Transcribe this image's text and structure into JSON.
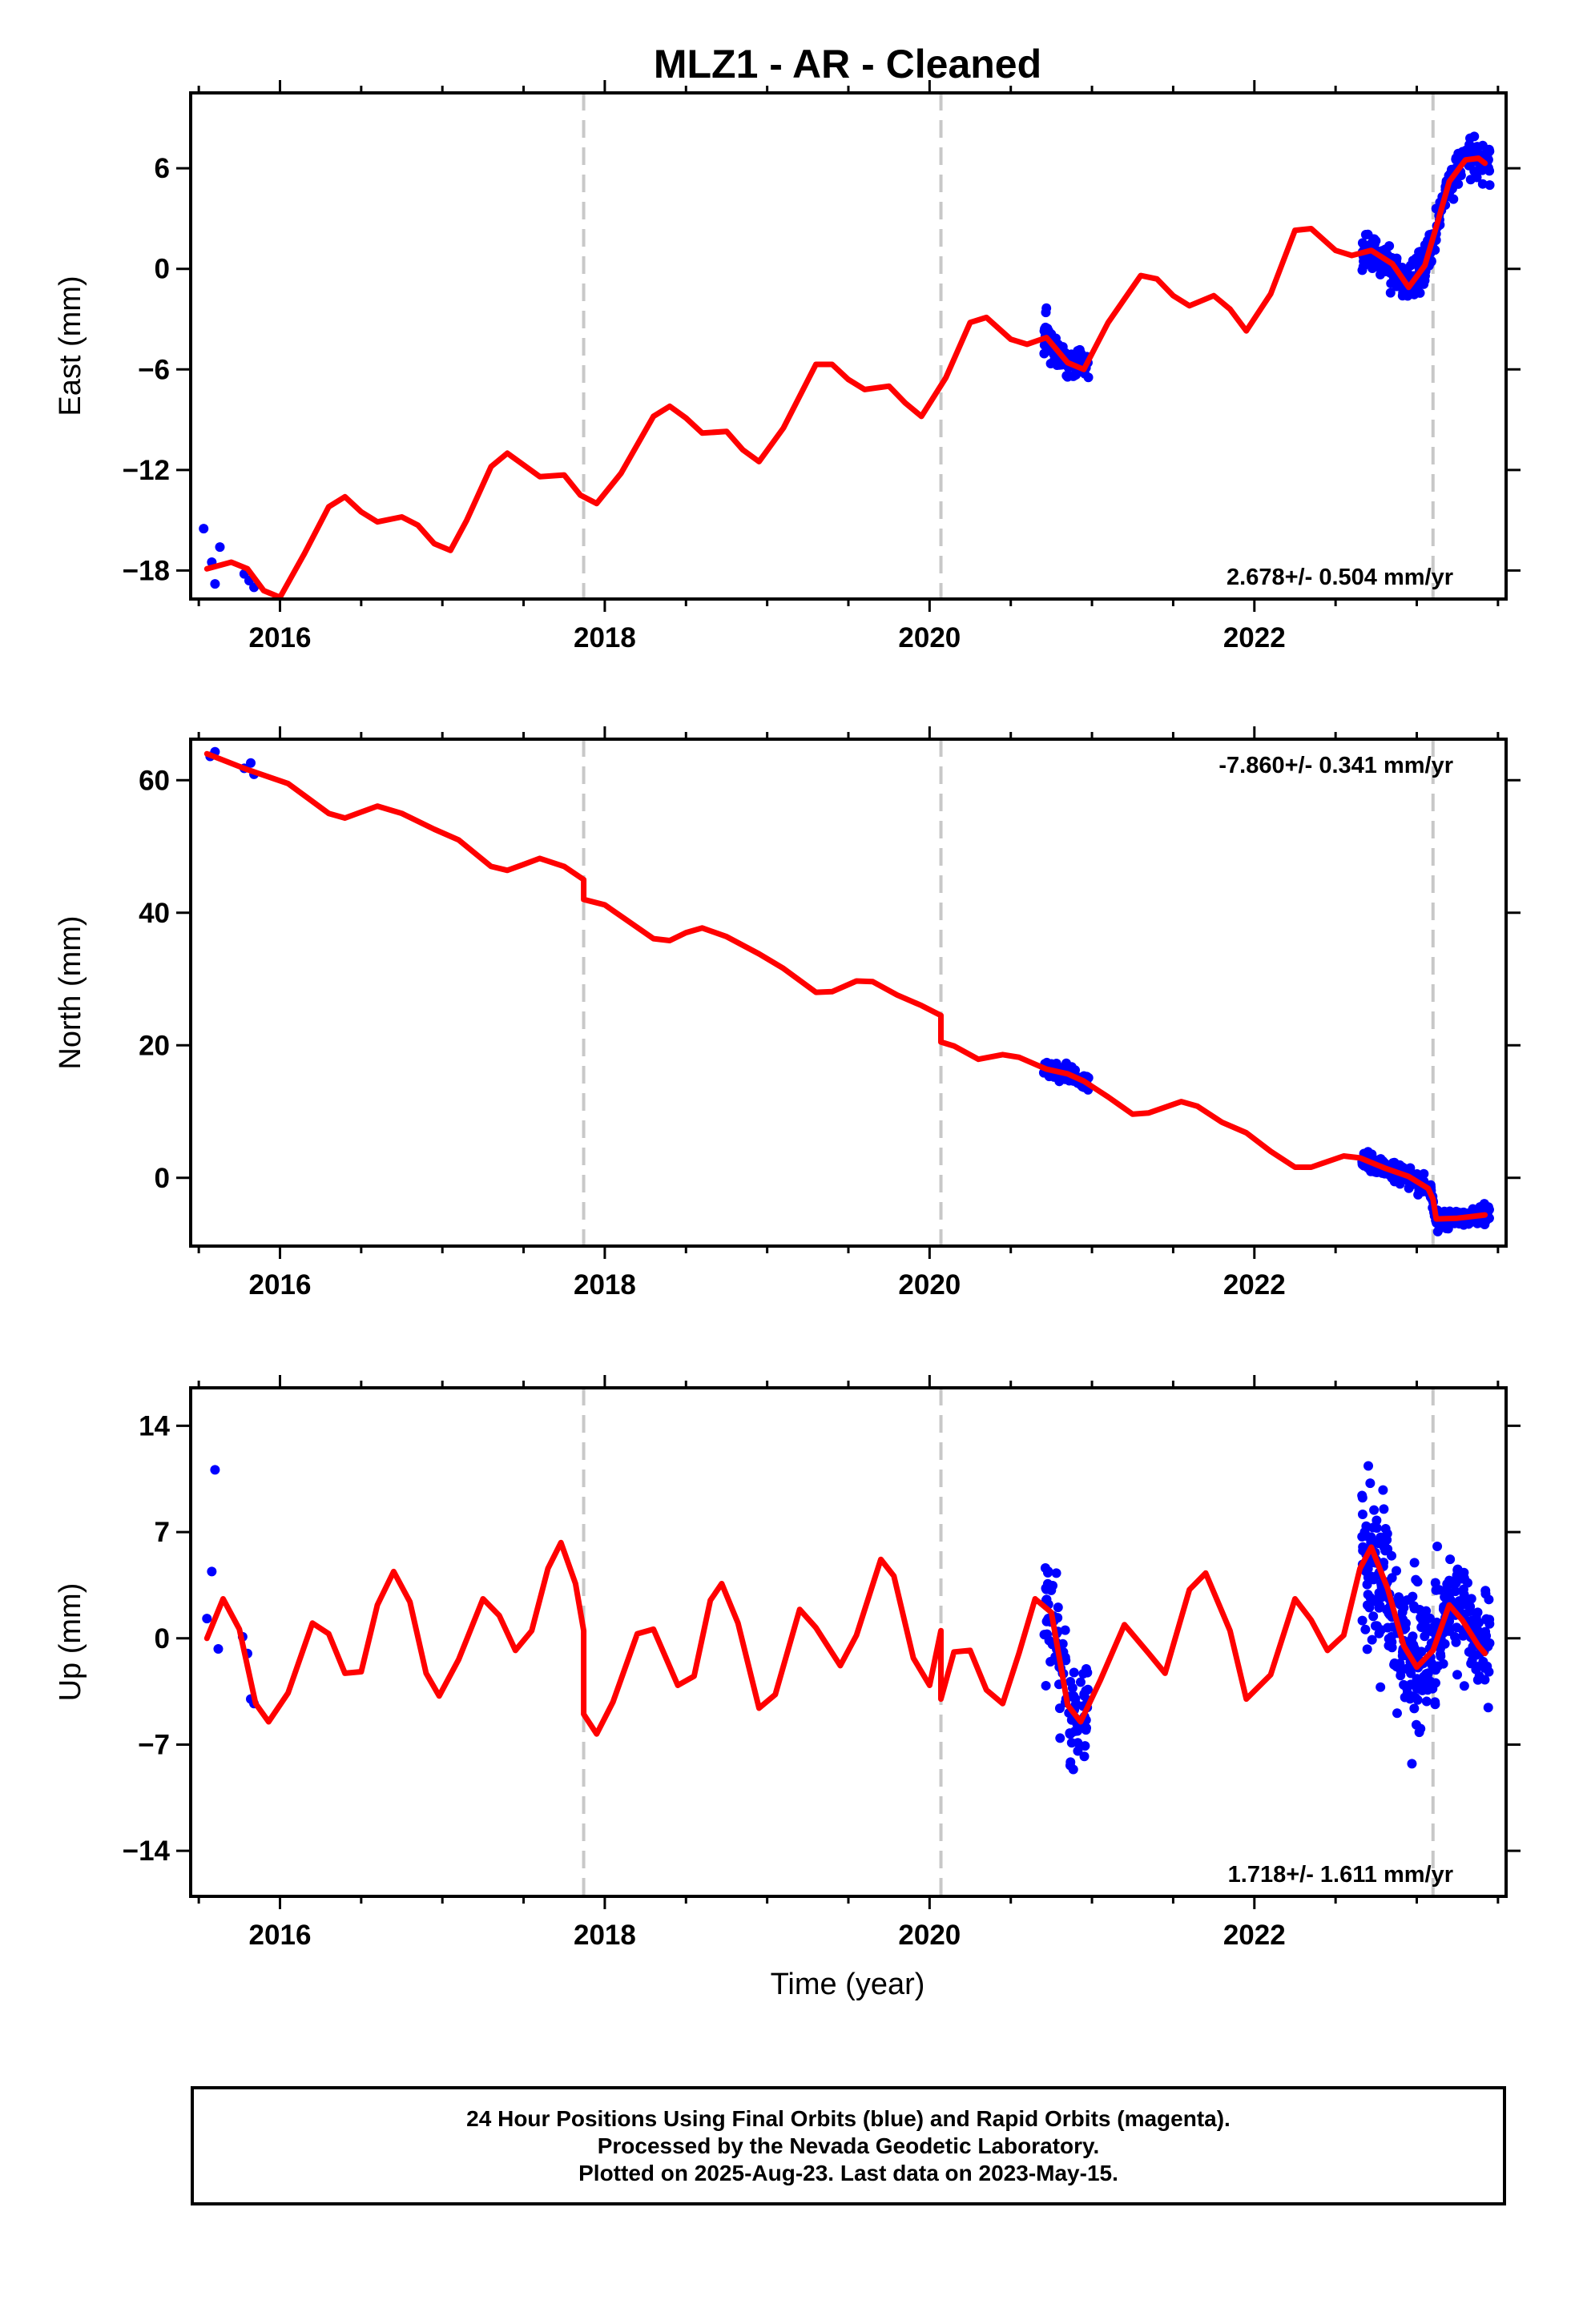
{
  "chart_data": {
    "type": "scatter",
    "title": "MLZ1  - AR - Cleaned",
    "xlabel": "Time (year)",
    "x_range": [
      2015.45,
      2023.55
    ],
    "x_ticks": [
      2016,
      2018,
      2020,
      2022
    ],
    "x_tick_labels": [
      "2016",
      "2018",
      "2020",
      "2022"
    ],
    "vertical_reference_lines": [
      2017.87,
      2020.07,
      2023.1
    ],
    "series_info": [
      {
        "name": "24 Hour Positions (Final Orbits)",
        "color": "#0000ff",
        "kind": "points"
      },
      {
        "name": "model fit",
        "color": "#ff0000",
        "kind": "line"
      }
    ],
    "panels": [
      {
        "key": "east",
        "ylabel": "East (mm)",
        "ylim": [
          -19.7,
          10.5
        ],
        "y_ticks": [
          -18,
          -12,
          -6,
          0,
          6
        ],
        "y_tick_labels": [
          "−18",
          "−12",
          "−6",
          "0",
          "6"
        ],
        "rate_text": "2.678+/- 0.504 mm/yr",
        "rate_position": "bottom-right",
        "model_points": [
          [
            2015.55,
            -17.9
          ],
          [
            2015.7,
            -17.5
          ],
          [
            2015.8,
            -17.9
          ],
          [
            2015.9,
            -19.2
          ],
          [
            2016.0,
            -19.6
          ],
          [
            2016.15,
            -17.0
          ],
          [
            2016.3,
            -14.2
          ],
          [
            2016.4,
            -13.6
          ],
          [
            2016.5,
            -14.5
          ],
          [
            2016.6,
            -15.1
          ],
          [
            2016.75,
            -14.8
          ],
          [
            2016.85,
            -15.3
          ],
          [
            2016.95,
            -16.4
          ],
          [
            2017.05,
            -16.8
          ],
          [
            2017.15,
            -15.0
          ],
          [
            2017.3,
            -11.8
          ],
          [
            2017.4,
            -11.0
          ],
          [
            2017.5,
            -11.7
          ],
          [
            2017.6,
            -12.4
          ],
          [
            2017.75,
            -12.3
          ],
          [
            2017.85,
            -13.5
          ],
          [
            2017.95,
            -14.0
          ],
          [
            2018.1,
            -12.2
          ],
          [
            2018.3,
            -8.8
          ],
          [
            2018.4,
            -8.2
          ],
          [
            2018.5,
            -8.9
          ],
          [
            2018.6,
            -9.8
          ],
          [
            2018.75,
            -9.7
          ],
          [
            2018.85,
            -10.8
          ],
          [
            2018.95,
            -11.5
          ],
          [
            2019.1,
            -9.5
          ],
          [
            2019.3,
            -5.7
          ],
          [
            2019.4,
            -5.7
          ],
          [
            2019.5,
            -6.6
          ],
          [
            2019.6,
            -7.2
          ],
          [
            2019.75,
            -7.0
          ],
          [
            2019.85,
            -8.0
          ],
          [
            2019.95,
            -8.8
          ],
          [
            2020.1,
            -6.5
          ],
          [
            2020.25,
            -3.2
          ],
          [
            2020.35,
            -2.9
          ],
          [
            2020.5,
            -4.2
          ],
          [
            2020.6,
            -4.5
          ],
          [
            2020.72,
            -4.1
          ],
          [
            2020.85,
            -5.6
          ],
          [
            2020.95,
            -6.0
          ],
          [
            2021.1,
            -3.2
          ],
          [
            2021.3,
            -0.4
          ],
          [
            2021.4,
            -0.6
          ],
          [
            2021.5,
            -1.6
          ],
          [
            2021.6,
            -2.2
          ],
          [
            2021.75,
            -1.6
          ],
          [
            2021.85,
            -2.4
          ],
          [
            2021.95,
            -3.7
          ],
          [
            2022.1,
            -1.5
          ],
          [
            2022.25,
            2.3
          ],
          [
            2022.35,
            2.4
          ],
          [
            2022.5,
            1.1
          ],
          [
            2022.6,
            0.8
          ],
          [
            2022.72,
            1.1
          ],
          [
            2022.85,
            0.3
          ],
          [
            2022.95,
            -1.1
          ],
          [
            2023.05,
            0.2
          ],
          [
            2023.12,
            2.5
          ],
          [
            2023.2,
            5.2
          ],
          [
            2023.3,
            6.5
          ],
          [
            2023.38,
            6.6
          ],
          [
            2023.42,
            6.3
          ]
        ],
        "obs_groups": [
          {
            "points": [
              [
                2015.53,
                -15.5
              ],
              [
                2015.58,
                -17.5
              ],
              [
                2015.6,
                -18.8
              ],
              [
                2015.63,
                -16.6
              ],
              [
                2015.78,
                -18.2
              ],
              [
                2015.81,
                -18.6
              ],
              [
                2015.84,
                -19.0
              ]
            ]
          },
          {
            "x0": 2020.7,
            "x1": 2020.98,
            "cx0": 2020.7,
            "cy0": -3.4,
            "cx1": 2020.98,
            "cy1": -6.0,
            "spread": 0.9,
            "count": 90,
            "seed": 11
          },
          {
            "x0": 2022.66,
            "x1": 2023.12,
            "cx0": 2022.66,
            "cy0": 1.0,
            "cx1": 2023.12,
            "cy1": 0.3,
            "spread": 0.9,
            "count": 230,
            "seed": 23,
            "dip": [
              2022.95,
              -1.0
            ]
          },
          {
            "x0": 2023.12,
            "x1": 2023.45,
            "cx0": 2023.12,
            "cy0": 3.0,
            "cx1": 2023.45,
            "cy1": 6.5,
            "spread": 1.0,
            "count": 130,
            "seed": 37
          }
        ]
      },
      {
        "key": "north",
        "ylabel": "North (mm)",
        "ylim": [
          -10.3,
          66.2
        ],
        "y_ticks": [
          0,
          20,
          40,
          60
        ],
        "y_tick_labels": [
          "0",
          "20",
          "40",
          "60"
        ],
        "rate_text": "-7.860+/- 0.341 mm/yr",
        "rate_position": "top-right",
        "model_points": [
          [
            2015.55,
            64.0
          ],
          [
            2015.8,
            61.6
          ],
          [
            2016.05,
            59.5
          ],
          [
            2016.3,
            55.0
          ],
          [
            2016.4,
            54.3
          ],
          [
            2016.5,
            55.2
          ],
          [
            2016.6,
            56.1
          ],
          [
            2016.75,
            55.0
          ],
          [
            2016.95,
            52.6
          ],
          [
            2017.1,
            51.0
          ],
          [
            2017.3,
            47.0
          ],
          [
            2017.4,
            46.4
          ],
          [
            2017.5,
            47.3
          ],
          [
            2017.6,
            48.2
          ],
          [
            2017.75,
            47.0
          ],
          [
            2017.87,
            45.0
          ],
          [
            2017.87,
            42.0
          ],
          [
            2018.0,
            41.2
          ],
          [
            2018.3,
            36.1
          ],
          [
            2018.4,
            35.8
          ],
          [
            2018.5,
            37.0
          ],
          [
            2018.6,
            37.7
          ],
          [
            2018.75,
            36.4
          ],
          [
            2018.95,
            33.8
          ],
          [
            2019.1,
            31.6
          ],
          [
            2019.3,
            28.0
          ],
          [
            2019.4,
            28.1
          ],
          [
            2019.55,
            29.7
          ],
          [
            2019.65,
            29.6
          ],
          [
            2019.8,
            27.6
          ],
          [
            2019.95,
            26.0
          ],
          [
            2020.07,
            24.5
          ],
          [
            2020.07,
            20.5
          ],
          [
            2020.15,
            19.9
          ],
          [
            2020.3,
            17.9
          ],
          [
            2020.45,
            18.6
          ],
          [
            2020.55,
            18.2
          ],
          [
            2020.72,
            16.4
          ],
          [
            2020.85,
            15.7
          ],
          [
            2020.95,
            14.6
          ],
          [
            2021.1,
            12.2
          ],
          [
            2021.25,
            9.6
          ],
          [
            2021.35,
            9.8
          ],
          [
            2021.55,
            11.5
          ],
          [
            2021.65,
            10.8
          ],
          [
            2021.8,
            8.4
          ],
          [
            2021.95,
            6.8
          ],
          [
            2022.1,
            4.0
          ],
          [
            2022.25,
            1.6
          ],
          [
            2022.35,
            1.6
          ],
          [
            2022.55,
            3.3
          ],
          [
            2022.65,
            3.0
          ],
          [
            2022.8,
            1.5
          ],
          [
            2022.95,
            0.2
          ],
          [
            2023.07,
            -1.6
          ],
          [
            2023.1,
            -3.2
          ],
          [
            2023.12,
            -6.2
          ],
          [
            2023.25,
            -6.1
          ],
          [
            2023.35,
            -5.8
          ],
          [
            2023.42,
            -5.6
          ]
        ],
        "obs_groups": [
          {
            "points": [
              [
                2015.57,
                63.6
              ],
              [
                2015.6,
                64.3
              ],
              [
                2015.78,
                61.8
              ],
              [
                2015.82,
                62.6
              ],
              [
                2015.84,
                60.9
              ]
            ]
          },
          {
            "x0": 2020.7,
            "x1": 2020.98,
            "cx0": 2020.7,
            "cy0": 17.6,
            "cx1": 2020.98,
            "cy1": 14.3,
            "spread": 1.1,
            "count": 90,
            "seed": 41
          },
          {
            "x0": 2022.66,
            "x1": 2023.12,
            "cx0": 2022.66,
            "cy0": 2.8,
            "cx1": 2023.12,
            "cy1": -2.3,
            "spread": 1.2,
            "count": 230,
            "seed": 53
          },
          {
            "x0": 2023.12,
            "x1": 2023.45,
            "cx0": 2023.12,
            "cy0": -5.5,
            "cx1": 2023.45,
            "cy1": -5.0,
            "spread": 1.2,
            "count": 130,
            "seed": 67
          }
        ]
      },
      {
        "key": "up",
        "ylabel": "Up (mm)",
        "ylim": [
          -17.0,
          16.5
        ],
        "y_ticks": [
          -14,
          -7,
          0,
          7,
          14
        ],
        "y_tick_labels": [
          "−14",
          "−7",
          "0",
          "7",
          "14"
        ],
        "rate_text": "1.718+/- 1.611 mm/yr",
        "rate_position": "bottom-right",
        "model_points": [
          [
            2015.55,
            0.0
          ],
          [
            2015.65,
            2.6
          ],
          [
            2015.75,
            0.6
          ],
          [
            2015.85,
            -4.3
          ],
          [
            2015.93,
            -5.5
          ],
          [
            2016.05,
            -3.6
          ],
          [
            2016.2,
            1.0
          ],
          [
            2016.3,
            0.3
          ],
          [
            2016.4,
            -2.3
          ],
          [
            2016.5,
            -2.2
          ],
          [
            2016.6,
            2.2
          ],
          [
            2016.7,
            4.4
          ],
          [
            2016.8,
            2.4
          ],
          [
            2016.9,
            -2.3
          ],
          [
            2016.98,
            -3.8
          ],
          [
            2017.1,
            -1.4
          ],
          [
            2017.25,
            2.6
          ],
          [
            2017.35,
            1.5
          ],
          [
            2017.45,
            -0.8
          ],
          [
            2017.55,
            0.5
          ],
          [
            2017.65,
            4.6
          ],
          [
            2017.73,
            6.3
          ],
          [
            2017.82,
            3.6
          ],
          [
            2017.87,
            0.5
          ],
          [
            2017.87,
            -5.0
          ],
          [
            2017.95,
            -6.3
          ],
          [
            2018.05,
            -4.2
          ],
          [
            2018.2,
            0.3
          ],
          [
            2018.3,
            0.6
          ],
          [
            2018.45,
            -3.1
          ],
          [
            2018.55,
            -2.5
          ],
          [
            2018.65,
            2.5
          ],
          [
            2018.72,
            3.6
          ],
          [
            2018.82,
            1.0
          ],
          [
            2018.95,
            -4.6
          ],
          [
            2019.05,
            -3.7
          ],
          [
            2019.2,
            1.9
          ],
          [
            2019.3,
            0.7
          ],
          [
            2019.45,
            -1.8
          ],
          [
            2019.55,
            0.2
          ],
          [
            2019.7,
            5.2
          ],
          [
            2019.78,
            4.1
          ],
          [
            2019.9,
            -1.3
          ],
          [
            2020.0,
            -3.1
          ],
          [
            2020.07,
            0.5
          ],
          [
            2020.07,
            -4.0
          ],
          [
            2020.15,
            -0.9
          ],
          [
            2020.25,
            -0.8
          ],
          [
            2020.35,
            -3.4
          ],
          [
            2020.45,
            -4.3
          ],
          [
            2020.55,
            -1.0
          ],
          [
            2020.65,
            2.6
          ],
          [
            2020.75,
            1.7
          ],
          [
            2020.85,
            -4.4
          ],
          [
            2020.93,
            -5.5
          ],
          [
            2021.05,
            -2.8
          ],
          [
            2021.2,
            0.9
          ],
          [
            2021.35,
            -1.0
          ],
          [
            2021.45,
            -2.3
          ],
          [
            2021.6,
            3.2
          ],
          [
            2021.7,
            4.3
          ],
          [
            2021.85,
            0.5
          ],
          [
            2021.95,
            -4.0
          ],
          [
            2022.1,
            -2.4
          ],
          [
            2022.25,
            2.6
          ],
          [
            2022.35,
            1.2
          ],
          [
            2022.45,
            -0.8
          ],
          [
            2022.55,
            0.2
          ],
          [
            2022.65,
            4.6
          ],
          [
            2022.72,
            6.0
          ],
          [
            2022.82,
            3.3
          ],
          [
            2022.92,
            -0.5
          ],
          [
            2023.0,
            -1.9
          ],
          [
            2023.1,
            -0.8
          ],
          [
            2023.2,
            2.2
          ],
          [
            2023.28,
            1.2
          ],
          [
            2023.38,
            -0.5
          ],
          [
            2023.42,
            -1.0
          ]
        ],
        "obs_groups": [
          {
            "points": [
              [
                2015.55,
                1.3
              ],
              [
                2015.58,
                4.4
              ],
              [
                2015.6,
                11.1
              ],
              [
                2015.62,
                -0.7
              ],
              [
                2015.77,
                0.1
              ],
              [
                2015.8,
                -1.0
              ],
              [
                2015.82,
                -4.0
              ],
              [
                2015.84,
                -4.3
              ]
            ]
          },
          {
            "x0": 2020.7,
            "x1": 2020.98,
            "cx0": 2020.7,
            "cy0": 2.5,
            "cx1": 2020.98,
            "cy1": -6.0,
            "spread": 3.6,
            "count": 95,
            "seed": 71
          },
          {
            "x0": 2022.66,
            "x1": 2023.12,
            "cx0": 2022.66,
            "cy0": 5.5,
            "cx1": 2023.12,
            "cy1": -1.0,
            "spread": 4.2,
            "count": 230,
            "seed": 83
          },
          {
            "x0": 2023.12,
            "x1": 2023.45,
            "cx0": 2023.12,
            "cy0": 1.0,
            "cx1": 2023.45,
            "cy1": 0.5,
            "spread": 3.6,
            "count": 130,
            "seed": 97
          }
        ]
      }
    ]
  },
  "footer": {
    "line1": "24 Hour Positions Using Final Orbits (blue) and Rapid Orbits (magenta).",
    "line2": "Processed by the Nevada Geodetic Laboratory.",
    "line3": "Plotted on 2025-Aug-23. Last data on 2023-May-15."
  }
}
